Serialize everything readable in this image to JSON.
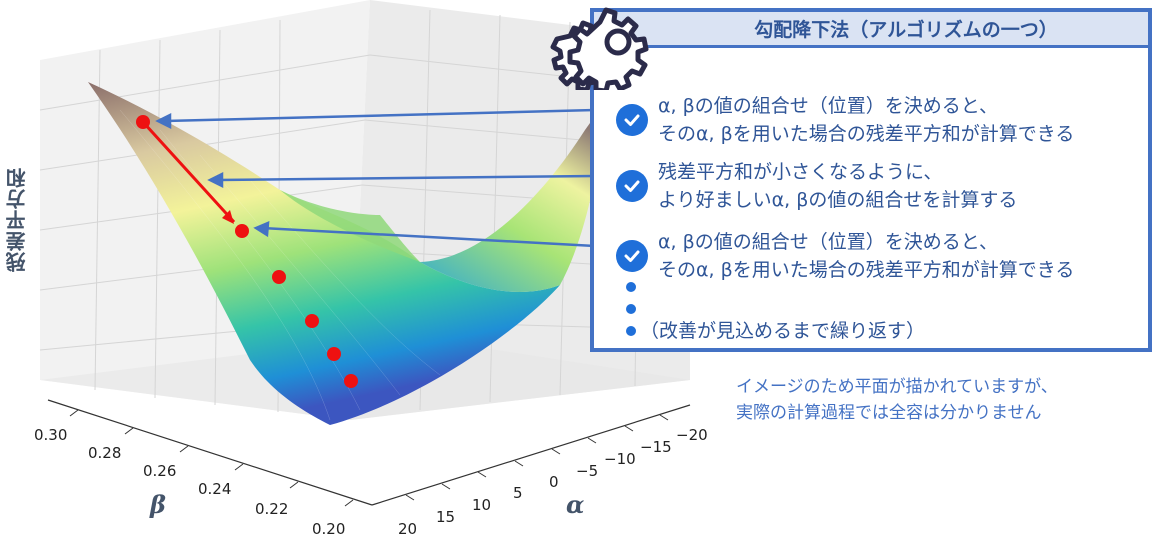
{
  "axes": {
    "z_title": "残差平方和",
    "x_symbol": "β",
    "y_symbol": "α",
    "beta_ticks": [
      "0.30",
      "0.28",
      "0.26",
      "0.24",
      "0.22",
      "0.20"
    ],
    "alpha_ticks": [
      "−20",
      "−15",
      "−10",
      "−5",
      "0",
      "5",
      "10",
      "15",
      "20"
    ]
  },
  "panel": {
    "title": "勾配降下法（アルゴリズムの一つ）",
    "items": [
      {
        "text": "α, βの値の組合せ（位置）を決めると、\nそのα, βを用いた場合の残差平方和が計算できる"
      },
      {
        "text": "残差平方和が小さくなるように、\nより好ましいα, βの値の組合せを計算する"
      },
      {
        "text": "α, βの値の組合せ（位置）を決めると、\nそのα, βを用いた場合の残差平方和が計算できる"
      }
    ],
    "last_bullet_text": "（改善が見込めるまで繰り返す）"
  },
  "note": "イメージのため平面が描かれていますが、\n実際の計算過程では全容は分かりません",
  "colors": {
    "accent": "#4472c4",
    "check": "#1f6fd9",
    "marker": "#ee1111",
    "text_dark": "#44546a"
  }
}
